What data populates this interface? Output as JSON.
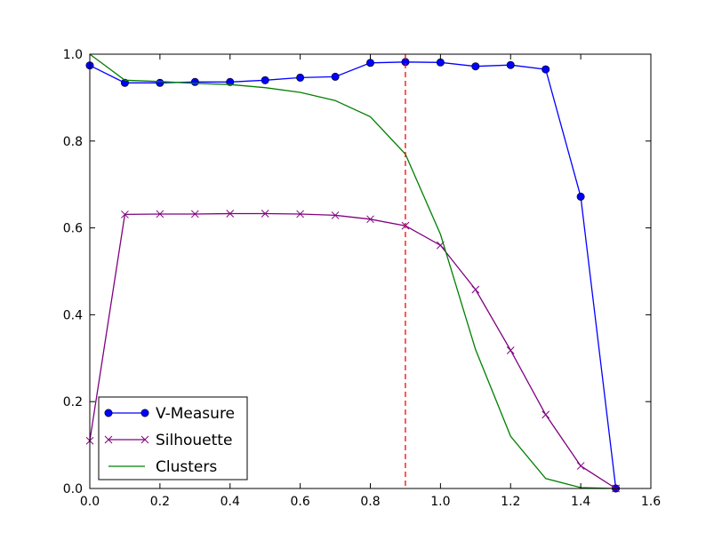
{
  "chart_data": {
    "type": "line",
    "title": "",
    "xlabel": "",
    "ylabel": "",
    "xlim": [
      0.0,
      1.6
    ],
    "ylim": [
      0.0,
      1.0
    ],
    "xticks": [
      "0.0",
      "0.2",
      "0.4",
      "0.6",
      "0.8",
      "1.0",
      "1.2",
      "1.4",
      "1.6"
    ],
    "yticks": [
      "0.0",
      "0.2",
      "0.4",
      "0.6",
      "0.8",
      "1.0"
    ],
    "grid": false,
    "legend_position": "lower-left",
    "x": [
      0.0,
      0.1,
      0.2,
      0.3,
      0.4,
      0.5,
      0.6,
      0.7,
      0.8,
      0.9,
      1.0,
      1.1,
      1.2,
      1.3,
      1.4,
      1.5
    ],
    "series": [
      {
        "name": "V-Measure",
        "color": "#0000ff",
        "marker": "circle",
        "values": [
          0.974,
          0.934,
          0.934,
          0.936,
          0.936,
          0.94,
          0.946,
          0.948,
          0.98,
          0.982,
          0.981,
          0.972,
          0.975,
          0.965,
          0.672,
          0.0
        ]
      },
      {
        "name": "Silhouette",
        "color": "#800080",
        "marker": "x",
        "values": [
          0.11,
          0.631,
          0.632,
          0.632,
          0.633,
          0.633,
          0.632,
          0.629,
          0.62,
          0.605,
          0.56,
          0.458,
          0.318,
          0.17,
          0.052,
          0.0
        ]
      },
      {
        "name": "Clusters",
        "color": "#008000",
        "marker": "none",
        "values": [
          1.0,
          0.94,
          0.937,
          0.933,
          0.93,
          0.923,
          0.912,
          0.893,
          0.856,
          0.77,
          0.585,
          0.32,
          0.12,
          0.023,
          0.002,
          0.0
        ]
      }
    ],
    "vlines": [
      {
        "x": 0.9,
        "color": "#ff0000",
        "style": "dashed"
      }
    ]
  }
}
